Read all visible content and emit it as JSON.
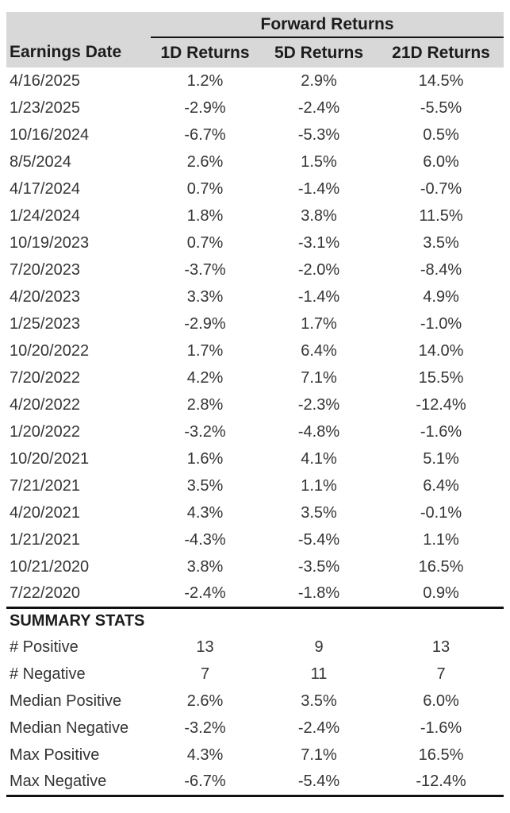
{
  "colors": {
    "header_bg": "#d8d8d8",
    "body_text": "#343434",
    "header_text": "#1c1c1c",
    "rule": "#111111",
    "background": "#ffffff"
  },
  "chart_data": {
    "type": "table",
    "title": "Forward Returns",
    "columns": [
      "Earnings Date",
      "1D Returns",
      "5D Returns",
      "21D Returns"
    ],
    "rows": [
      {
        "date": "4/16/2025",
        "d1": "1.2%",
        "d5": "2.9%",
        "d21": "14.5%"
      },
      {
        "date": "1/23/2025",
        "d1": "-2.9%",
        "d5": "-2.4%",
        "d21": "-5.5%"
      },
      {
        "date": "10/16/2024",
        "d1": "-6.7%",
        "d5": "-5.3%",
        "d21": "0.5%"
      },
      {
        "date": "8/5/2024",
        "d1": "2.6%",
        "d5": "1.5%",
        "d21": "6.0%"
      },
      {
        "date": "4/17/2024",
        "d1": "0.7%",
        "d5": "-1.4%",
        "d21": "-0.7%"
      },
      {
        "date": "1/24/2024",
        "d1": "1.8%",
        "d5": "3.8%",
        "d21": "11.5%"
      },
      {
        "date": "10/19/2023",
        "d1": "0.7%",
        "d5": "-3.1%",
        "d21": "3.5%"
      },
      {
        "date": "7/20/2023",
        "d1": "-3.7%",
        "d5": "-2.0%",
        "d21": "-8.4%"
      },
      {
        "date": "4/20/2023",
        "d1": "3.3%",
        "d5": "-1.4%",
        "d21": "4.9%"
      },
      {
        "date": "1/25/2023",
        "d1": "-2.9%",
        "d5": "1.7%",
        "d21": "-1.0%"
      },
      {
        "date": "10/20/2022",
        "d1": "1.7%",
        "d5": "6.4%",
        "d21": "14.0%"
      },
      {
        "date": "7/20/2022",
        "d1": "4.2%",
        "d5": "7.1%",
        "d21": "15.5%"
      },
      {
        "date": "4/20/2022",
        "d1": "2.8%",
        "d5": "-2.3%",
        "d21": "-12.4%"
      },
      {
        "date": "1/20/2022",
        "d1": "-3.2%",
        "d5": "-4.8%",
        "d21": "-1.6%"
      },
      {
        "date": "10/20/2021",
        "d1": "1.6%",
        "d5": "4.1%",
        "d21": "5.1%"
      },
      {
        "date": "7/21/2021",
        "d1": "3.5%",
        "d5": "1.1%",
        "d21": "6.4%"
      },
      {
        "date": "4/20/2021",
        "d1": "4.3%",
        "d5": "3.5%",
        "d21": "-0.1%"
      },
      {
        "date": "1/21/2021",
        "d1": "-4.3%",
        "d5": "-5.4%",
        "d21": "1.1%"
      },
      {
        "date": "10/21/2020",
        "d1": "3.8%",
        "d5": "-3.5%",
        "d21": "16.5%"
      },
      {
        "date": "7/22/2020",
        "d1": "-2.4%",
        "d5": "-1.8%",
        "d21": "0.9%"
      }
    ],
    "summary_title": "SUMMARY STATS",
    "summary_rows": [
      {
        "label": "# Positive",
        "d1": "13",
        "d5": "9",
        "d21": "13"
      },
      {
        "label": "# Negative",
        "d1": "7",
        "d5": "11",
        "d21": "7"
      },
      {
        "label": "Median Positive",
        "d1": "2.6%",
        "d5": "3.5%",
        "d21": "6.0%"
      },
      {
        "label": "Median Negative",
        "d1": "-3.2%",
        "d5": "-2.4%",
        "d21": "-1.6%"
      },
      {
        "label": "Max Positive",
        "d1": "4.3%",
        "d5": "7.1%",
        "d21": "16.5%"
      },
      {
        "label": "Max Negative",
        "d1": "-6.7%",
        "d5": "-5.4%",
        "d21": "-12.4%"
      }
    ]
  }
}
